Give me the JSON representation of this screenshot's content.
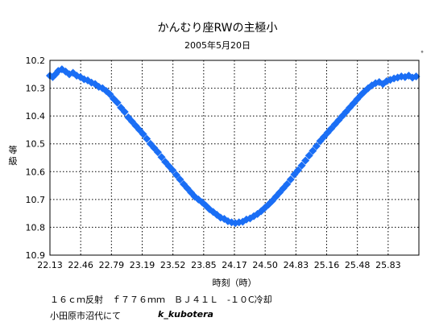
{
  "chart_data": {
    "type": "scatter",
    "title": "かんむり座RWの主極小",
    "subtitle": "2005年5月20日",
    "xlabel": "時刻（時）",
    "ylabel": "等級",
    "xlim": [
      22.13,
      26.13
    ],
    "ylim": [
      10.9,
      10.2
    ],
    "y_inverted": true,
    "grid": true,
    "x_ticks": [
      "22.13",
      "22.46",
      "22.79",
      "23.19",
      "23.52",
      "23.85",
      "24.17",
      "24.50",
      "24.83",
      "25.16",
      "25.48",
      "25.83"
    ],
    "y_ticks": [
      "10.2",
      "10.3",
      "10.4",
      "10.5",
      "10.6",
      "10.7",
      "10.8",
      "10.9"
    ],
    "corner_mark": "゜",
    "marker_color": "#1a6ef5",
    "series": [
      {
        "marker": "diamond",
        "points": [
          [
            22.13,
            10.255
          ],
          [
            22.16,
            10.26
          ],
          [
            22.19,
            10.25
          ],
          [
            22.22,
            10.238
          ],
          [
            22.26,
            10.232
          ],
          [
            22.3,
            10.24
          ],
          [
            22.34,
            10.25
          ],
          [
            22.38,
            10.245
          ],
          [
            22.42,
            10.255
          ],
          [
            22.46,
            10.26
          ],
          [
            22.5,
            10.268
          ],
          [
            22.54,
            10.272
          ],
          [
            22.58,
            10.28
          ],
          [
            22.62,
            10.285
          ],
          [
            22.66,
            10.295
          ],
          [
            22.7,
            10.3
          ],
          [
            22.74,
            10.31
          ],
          [
            22.78,
            10.322
          ],
          [
            22.82,
            10.338
          ],
          [
            22.86,
            10.352
          ],
          [
            22.9,
            10.37
          ],
          [
            22.94,
            10.385
          ],
          [
            22.98,
            10.405
          ],
          [
            23.02,
            10.42
          ],
          [
            23.06,
            10.435
          ],
          [
            23.1,
            10.45
          ],
          [
            23.14,
            10.465
          ],
          [
            23.18,
            10.482
          ],
          [
            23.22,
            10.5
          ],
          [
            23.26,
            10.515
          ],
          [
            23.3,
            10.53
          ],
          [
            23.34,
            10.548
          ],
          [
            23.38,
            10.565
          ],
          [
            23.42,
            10.58
          ],
          [
            23.46,
            10.595
          ],
          [
            23.5,
            10.612
          ],
          [
            23.54,
            10.628
          ],
          [
            23.58,
            10.645
          ],
          [
            23.62,
            10.66
          ],
          [
            23.66,
            10.675
          ],
          [
            23.7,
            10.69
          ],
          [
            23.74,
            10.7
          ],
          [
            23.78,
            10.71
          ],
          [
            23.82,
            10.722
          ],
          [
            23.86,
            10.735
          ],
          [
            23.9,
            10.745
          ],
          [
            23.94,
            10.755
          ],
          [
            23.98,
            10.765
          ],
          [
            24.02,
            10.77
          ],
          [
            24.06,
            10.778
          ],
          [
            24.1,
            10.782
          ],
          [
            24.14,
            10.785
          ],
          [
            24.18,
            10.782
          ],
          [
            24.22,
            10.78
          ],
          [
            24.26,
            10.772
          ],
          [
            24.3,
            10.768
          ],
          [
            24.34,
            10.76
          ],
          [
            24.38,
            10.752
          ],
          [
            24.42,
            10.742
          ],
          [
            24.46,
            10.73
          ],
          [
            24.5,
            10.718
          ],
          [
            24.54,
            10.705
          ],
          [
            24.58,
            10.69
          ],
          [
            24.62,
            10.675
          ],
          [
            24.66,
            10.66
          ],
          [
            24.7,
            10.645
          ],
          [
            24.74,
            10.628
          ],
          [
            24.78,
            10.61
          ],
          [
            24.82,
            10.595
          ],
          [
            24.86,
            10.578
          ],
          [
            24.9,
            10.56
          ],
          [
            24.94,
            10.542
          ],
          [
            24.98,
            10.525
          ],
          [
            25.02,
            10.508
          ],
          [
            25.06,
            10.49
          ],
          [
            25.1,
            10.475
          ],
          [
            25.14,
            10.46
          ],
          [
            25.18,
            10.445
          ],
          [
            25.22,
            10.43
          ],
          [
            25.26,
            10.415
          ],
          [
            25.3,
            10.4
          ],
          [
            25.34,
            10.385
          ],
          [
            25.38,
            10.37
          ],
          [
            25.42,
            10.355
          ],
          [
            25.46,
            10.34
          ],
          [
            25.5,
            10.325
          ],
          [
            25.54,
            10.312
          ],
          [
            25.58,
            10.3
          ],
          [
            25.62,
            10.29
          ],
          [
            25.66,
            10.282
          ],
          [
            25.7,
            10.278
          ],
          [
            25.74,
            10.285
          ],
          [
            25.78,
            10.275
          ],
          [
            25.82,
            10.27
          ],
          [
            25.86,
            10.265
          ],
          [
            25.9,
            10.262
          ],
          [
            25.94,
            10.258
          ],
          [
            25.98,
            10.26
          ],
          [
            26.02,
            10.255
          ],
          [
            26.06,
            10.262
          ],
          [
            26.1,
            10.258
          ]
        ]
      }
    ]
  },
  "footer": {
    "line1": "１６ｃｍ反射　ｆ７７６ｍｍ　ＢＪ４１Ｌ　-１０C冷却",
    "line2": "小田原市沼代にて",
    "author": "k_kubotera"
  }
}
